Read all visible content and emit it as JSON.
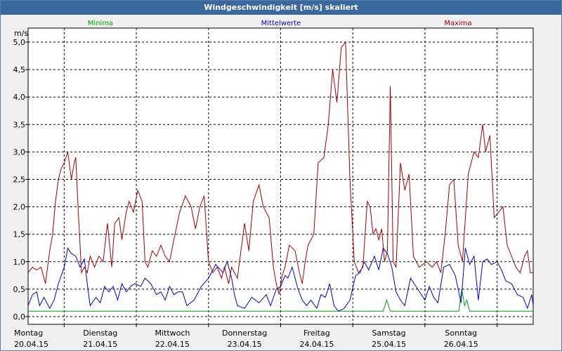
{
  "window": {
    "title": "Windgeschwindigkeit [m/s] skaliert"
  },
  "colors": {
    "min": "#00a000",
    "mean": "#0000c0",
    "max": "#a00000",
    "grid": "#000000"
  },
  "chart_data": {
    "type": "line",
    "title": "Windgeschwindigkeit [m/s] skaliert",
    "ylabel": "m/s",
    "ylim": [
      0,
      5.0
    ],
    "yticks": [
      "0,0",
      "0,5",
      "1,0",
      "1,5",
      "2,0",
      "2,5",
      "3,0",
      "3,5",
      "4,0",
      "4,5",
      "5,0"
    ],
    "grid": true,
    "x_range": [
      0,
      7
    ],
    "days": [
      {
        "day": "Montag",
        "date": "20.04.15"
      },
      {
        "day": "Dienstag",
        "date": "21.04.15"
      },
      {
        "day": "Mittwoch",
        "date": "22.04.15"
      },
      {
        "day": "Donnerstag",
        "date": "23.04.15"
      },
      {
        "day": "Freitag",
        "date": "24.04.15"
      },
      {
        "day": "Samstag",
        "date": "25.04.15"
      },
      {
        "day": "Sonntag",
        "date": "26.04.15"
      }
    ],
    "series": [
      {
        "name": "Minima",
        "color": "#00a000",
        "x": [
          0,
          4.92,
          4.97,
          5.02,
          5.97,
          6.01,
          6.05,
          6.08,
          6.12,
          7
        ],
        "y": [
          0.1,
          0.1,
          0.3,
          0.1,
          0.1,
          0.5,
          0.2,
          0.3,
          0.1,
          0.1
        ]
      },
      {
        "name": "Mittelwerte",
        "color": "#0000c0",
        "x": [
          0,
          0.06,
          0.12,
          0.16,
          0.22,
          0.3,
          0.36,
          0.42,
          0.5,
          0.55,
          0.6,
          0.66,
          0.72,
          0.78,
          0.82,
          0.86,
          0.94,
          1.0,
          1.06,
          1.12,
          1.18,
          1.24,
          1.3,
          1.36,
          1.42,
          1.48,
          1.56,
          1.62,
          1.7,
          1.78,
          1.84,
          1.9,
          1.96,
          2.02,
          2.08,
          2.14,
          2.2,
          2.3,
          2.4,
          2.5,
          2.6,
          2.7,
          2.76,
          2.82,
          2.86,
          2.9,
          3.0,
          3.1,
          3.2,
          3.3,
          3.36,
          3.44,
          3.5,
          3.56,
          3.6,
          3.66,
          3.74,
          3.8,
          3.86,
          3.92,
          4.0,
          4.06,
          4.12,
          4.18,
          4.24,
          4.3,
          4.38,
          4.46,
          4.54,
          4.6,
          4.66,
          4.72,
          4.8,
          4.86,
          4.92,
          4.98,
          5.04,
          5.1,
          5.16,
          5.22,
          5.3,
          5.4,
          5.5,
          5.56,
          5.62,
          5.68,
          5.76,
          5.84,
          5.92,
          6.0,
          6.06,
          6.12,
          6.18,
          6.24,
          6.3,
          6.36,
          6.42,
          6.5,
          6.56,
          6.62,
          6.7,
          6.78,
          6.86,
          6.92,
          6.98,
          7.0
        ],
        "y": [
          0.2,
          0.4,
          0.45,
          0.2,
          0.35,
          0.15,
          0.3,
          0.6,
          0.9,
          1.25,
          1.15,
          1.1,
          0.9,
          1.05,
          0.6,
          0.2,
          0.35,
          0.25,
          0.55,
          0.45,
          0.55,
          0.3,
          0.6,
          0.45,
          0.55,
          0.6,
          0.55,
          0.7,
          0.6,
          0.4,
          0.45,
          0.3,
          0.55,
          0.4,
          0.45,
          0.45,
          0.2,
          0.3,
          0.55,
          0.7,
          0.95,
          0.8,
          1.0,
          0.7,
          0.4,
          0.2,
          0.15,
          0.35,
          0.25,
          0.4,
          0.2,
          0.5,
          0.55,
          0.75,
          0.7,
          0.9,
          0.5,
          0.3,
          0.2,
          0.3,
          0.15,
          0.4,
          0.35,
          0.6,
          0.2,
          0.1,
          0.15,
          0.3,
          0.75,
          0.8,
          1.0,
          0.85,
          1.1,
          0.85,
          1.25,
          1.15,
          0.9,
          0.45,
          0.3,
          0.2,
          0.7,
          0.5,
          0.3,
          0.55,
          0.35,
          0.25,
          0.9,
          0.95,
          0.75,
          0.25,
          1.25,
          0.95,
          1.1,
          0.3,
          1.0,
          1.05,
          0.95,
          1.0,
          0.85,
          0.65,
          0.6,
          0.4,
          0.35,
          0.15,
          0.4,
          0.2
        ]
      },
      {
        "name": "Maxima",
        "color": "#a00000",
        "x": [
          0,
          0.06,
          0.12,
          0.18,
          0.24,
          0.3,
          0.34,
          0.38,
          0.42,
          0.46,
          0.5,
          0.55,
          0.6,
          0.64,
          0.66,
          0.7,
          0.74,
          0.78,
          0.82,
          0.86,
          0.92,
          0.98,
          1.04,
          1.1,
          1.16,
          1.2,
          1.26,
          1.3,
          1.36,
          1.4,
          1.46,
          1.52,
          1.58,
          1.62,
          1.66,
          1.72,
          1.78,
          1.84,
          1.9,
          1.96,
          2.02,
          2.1,
          2.18,
          2.26,
          2.32,
          2.38,
          2.44,
          2.5,
          2.56,
          2.62,
          2.68,
          2.72,
          2.78,
          2.82,
          2.9,
          3.0,
          3.06,
          3.12,
          3.2,
          3.26,
          3.34,
          3.4,
          3.44,
          3.48,
          3.52,
          3.56,
          3.62,
          3.7,
          3.76,
          3.8,
          3.84,
          3.88,
          3.96,
          4.02,
          4.1,
          4.16,
          4.22,
          4.28,
          4.34,
          4.4,
          4.46,
          4.52,
          4.58,
          4.64,
          4.7,
          4.74,
          4.78,
          4.82,
          4.86,
          4.9,
          4.94,
          4.98,
          5.02,
          5.06,
          5.1,
          5.16,
          5.22,
          5.28,
          5.34,
          5.42,
          5.52,
          5.6,
          5.66,
          5.72,
          5.78,
          5.84,
          5.9,
          5.96,
          6.02,
          6.1,
          6.18,
          6.24,
          6.3,
          6.34,
          6.4,
          6.46,
          6.52,
          6.58,
          6.64,
          6.7,
          6.76,
          6.82,
          6.88,
          6.92,
          6.96,
          7.0
        ],
        "y": [
          0.8,
          0.9,
          0.85,
          0.9,
          0.6,
          1.2,
          1.5,
          2.1,
          2.5,
          2.7,
          2.8,
          3.0,
          2.5,
          2.8,
          2.9,
          1.8,
          0.8,
          0.9,
          0.8,
          1.1,
          0.9,
          1.1,
          1.0,
          1.7,
          0.9,
          1.7,
          1.8,
          1.4,
          1.9,
          2.1,
          1.9,
          2.3,
          2.1,
          1.0,
          0.9,
          1.2,
          1.1,
          1.3,
          1.1,
          1.0,
          1.4,
          1.9,
          2.2,
          2.0,
          1.6,
          2.0,
          2.2,
          1.0,
          0.8,
          0.9,
          0.7,
          0.9,
          0.6,
          0.9,
          0.7,
          1.7,
          1.2,
          2.1,
          2.4,
          2.0,
          1.8,
          0.9,
          0.6,
          0.4,
          0.75,
          0.9,
          1.3,
          1.2,
          0.8,
          0.6,
          1.0,
          1.3,
          1.5,
          2.8,
          2.9,
          3.5,
          4.5,
          3.9,
          4.9,
          5.0,
          2.5,
          1.0,
          0.8,
          0.9,
          2.1,
          2.0,
          1.5,
          1.6,
          1.4,
          1.6,
          1.0,
          1.2,
          4.2,
          1.0,
          0.9,
          2.8,
          2.3,
          2.6,
          1.1,
          0.9,
          1.0,
          0.9,
          1.0,
          0.8,
          1.5,
          2.4,
          2.5,
          1.3,
          1.0,
          2.6,
          3.0,
          2.9,
          3.5,
          3.0,
          3.3,
          1.8,
          1.9,
          2.0,
          1.3,
          1.1,
          0.9,
          0.8,
          1.1,
          1.2,
          0.8,
          0.8
        ]
      }
    ]
  }
}
